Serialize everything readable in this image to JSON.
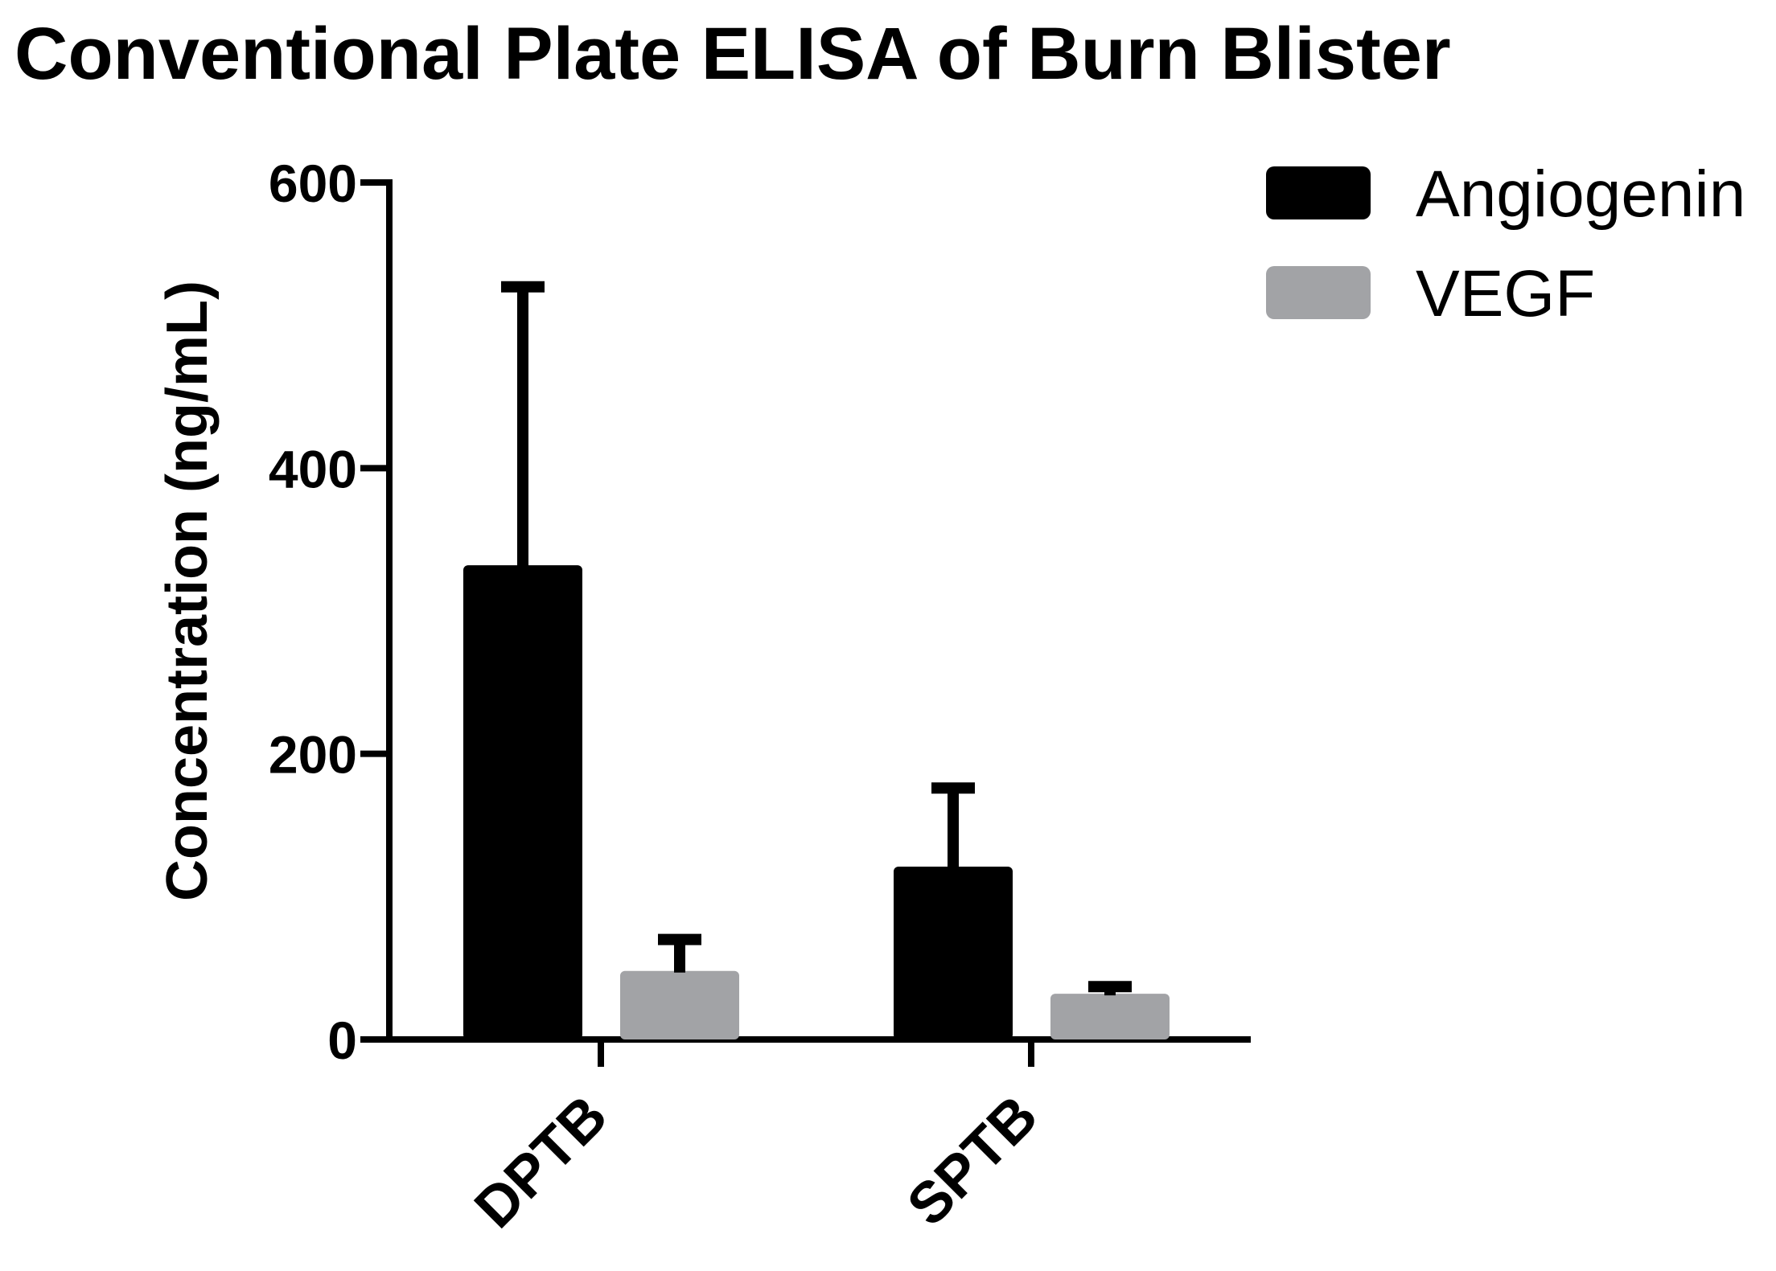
{
  "chart_data": {
    "type": "bar",
    "title": "Conventional Plate ELISA of Burn Blister",
    "ylabel": "Concentration (ng/mL)",
    "xlabel": "",
    "categories": [
      "DPTB",
      "SPTB"
    ],
    "ylim": [
      0,
      600
    ],
    "yticks": [
      0,
      200,
      400,
      600
    ],
    "series": [
      {
        "name": "Angiogenin",
        "color": "#000000",
        "values": [
          332,
          121
        ],
        "error": [
          195,
          55
        ]
      },
      {
        "name": "VEGF",
        "color": "#a2a3a6",
        "values": [
          48,
          32
        ],
        "error": [
          22,
          5
        ]
      }
    ],
    "legend": "top-right",
    "grid": false,
    "error_bars": "upper-only"
  }
}
